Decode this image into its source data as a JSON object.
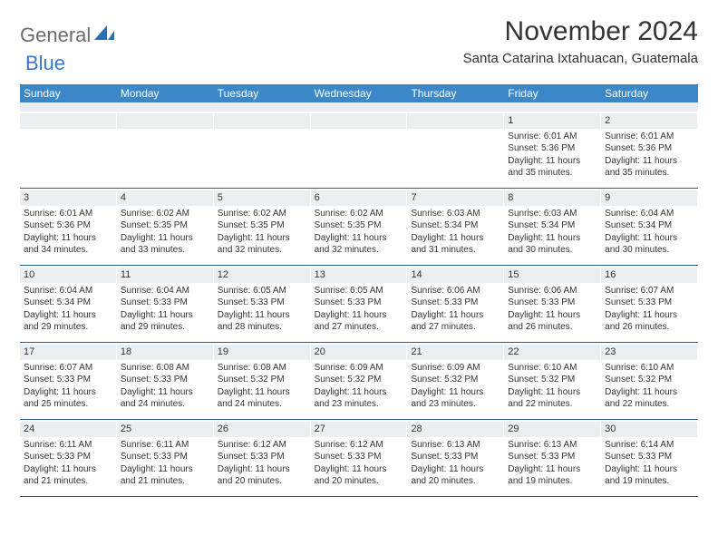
{
  "logo": {
    "gray": "General",
    "blue": "Blue"
  },
  "title": "November 2024",
  "location": "Santa Catarina Ixtahuacan, Guatemala",
  "colors": {
    "header_blue": "#3b87c8",
    "band_gray": "#eceff1",
    "rule_blue": "#2b5f8f",
    "logo_blue": "#3578c6",
    "text": "#333333",
    "bg": "#ffffff"
  },
  "dow": [
    "Sunday",
    "Monday",
    "Tuesday",
    "Wednesday",
    "Thursday",
    "Friday",
    "Saturday"
  ],
  "weeks": [
    [
      {
        "n": "",
        "sr": "",
        "ss": "",
        "dl": ""
      },
      {
        "n": "",
        "sr": "",
        "ss": "",
        "dl": ""
      },
      {
        "n": "",
        "sr": "",
        "ss": "",
        "dl": ""
      },
      {
        "n": "",
        "sr": "",
        "ss": "",
        "dl": ""
      },
      {
        "n": "",
        "sr": "",
        "ss": "",
        "dl": ""
      },
      {
        "n": "1",
        "sr": "Sunrise: 6:01 AM",
        "ss": "Sunset: 5:36 PM",
        "dl": "Daylight: 11 hours and 35 minutes."
      },
      {
        "n": "2",
        "sr": "Sunrise: 6:01 AM",
        "ss": "Sunset: 5:36 PM",
        "dl": "Daylight: 11 hours and 35 minutes."
      }
    ],
    [
      {
        "n": "3",
        "sr": "Sunrise: 6:01 AM",
        "ss": "Sunset: 5:36 PM",
        "dl": "Daylight: 11 hours and 34 minutes."
      },
      {
        "n": "4",
        "sr": "Sunrise: 6:02 AM",
        "ss": "Sunset: 5:35 PM",
        "dl": "Daylight: 11 hours and 33 minutes."
      },
      {
        "n": "5",
        "sr": "Sunrise: 6:02 AM",
        "ss": "Sunset: 5:35 PM",
        "dl": "Daylight: 11 hours and 32 minutes."
      },
      {
        "n": "6",
        "sr": "Sunrise: 6:02 AM",
        "ss": "Sunset: 5:35 PM",
        "dl": "Daylight: 11 hours and 32 minutes."
      },
      {
        "n": "7",
        "sr": "Sunrise: 6:03 AM",
        "ss": "Sunset: 5:34 PM",
        "dl": "Daylight: 11 hours and 31 minutes."
      },
      {
        "n": "8",
        "sr": "Sunrise: 6:03 AM",
        "ss": "Sunset: 5:34 PM",
        "dl": "Daylight: 11 hours and 30 minutes."
      },
      {
        "n": "9",
        "sr": "Sunrise: 6:04 AM",
        "ss": "Sunset: 5:34 PM",
        "dl": "Daylight: 11 hours and 30 minutes."
      }
    ],
    [
      {
        "n": "10",
        "sr": "Sunrise: 6:04 AM",
        "ss": "Sunset: 5:34 PM",
        "dl": "Daylight: 11 hours and 29 minutes."
      },
      {
        "n": "11",
        "sr": "Sunrise: 6:04 AM",
        "ss": "Sunset: 5:33 PM",
        "dl": "Daylight: 11 hours and 29 minutes."
      },
      {
        "n": "12",
        "sr": "Sunrise: 6:05 AM",
        "ss": "Sunset: 5:33 PM",
        "dl": "Daylight: 11 hours and 28 minutes."
      },
      {
        "n": "13",
        "sr": "Sunrise: 6:05 AM",
        "ss": "Sunset: 5:33 PM",
        "dl": "Daylight: 11 hours and 27 minutes."
      },
      {
        "n": "14",
        "sr": "Sunrise: 6:06 AM",
        "ss": "Sunset: 5:33 PM",
        "dl": "Daylight: 11 hours and 27 minutes."
      },
      {
        "n": "15",
        "sr": "Sunrise: 6:06 AM",
        "ss": "Sunset: 5:33 PM",
        "dl": "Daylight: 11 hours and 26 minutes."
      },
      {
        "n": "16",
        "sr": "Sunrise: 6:07 AM",
        "ss": "Sunset: 5:33 PM",
        "dl": "Daylight: 11 hours and 26 minutes."
      }
    ],
    [
      {
        "n": "17",
        "sr": "Sunrise: 6:07 AM",
        "ss": "Sunset: 5:33 PM",
        "dl": "Daylight: 11 hours and 25 minutes."
      },
      {
        "n": "18",
        "sr": "Sunrise: 6:08 AM",
        "ss": "Sunset: 5:33 PM",
        "dl": "Daylight: 11 hours and 24 minutes."
      },
      {
        "n": "19",
        "sr": "Sunrise: 6:08 AM",
        "ss": "Sunset: 5:32 PM",
        "dl": "Daylight: 11 hours and 24 minutes."
      },
      {
        "n": "20",
        "sr": "Sunrise: 6:09 AM",
        "ss": "Sunset: 5:32 PM",
        "dl": "Daylight: 11 hours and 23 minutes."
      },
      {
        "n": "21",
        "sr": "Sunrise: 6:09 AM",
        "ss": "Sunset: 5:32 PM",
        "dl": "Daylight: 11 hours and 23 minutes."
      },
      {
        "n": "22",
        "sr": "Sunrise: 6:10 AM",
        "ss": "Sunset: 5:32 PM",
        "dl": "Daylight: 11 hours and 22 minutes."
      },
      {
        "n": "23",
        "sr": "Sunrise: 6:10 AM",
        "ss": "Sunset: 5:32 PM",
        "dl": "Daylight: 11 hours and 22 minutes."
      }
    ],
    [
      {
        "n": "24",
        "sr": "Sunrise: 6:11 AM",
        "ss": "Sunset: 5:33 PM",
        "dl": "Daylight: 11 hours and 21 minutes."
      },
      {
        "n": "25",
        "sr": "Sunrise: 6:11 AM",
        "ss": "Sunset: 5:33 PM",
        "dl": "Daylight: 11 hours and 21 minutes."
      },
      {
        "n": "26",
        "sr": "Sunrise: 6:12 AM",
        "ss": "Sunset: 5:33 PM",
        "dl": "Daylight: 11 hours and 20 minutes."
      },
      {
        "n": "27",
        "sr": "Sunrise: 6:12 AM",
        "ss": "Sunset: 5:33 PM",
        "dl": "Daylight: 11 hours and 20 minutes."
      },
      {
        "n": "28",
        "sr": "Sunrise: 6:13 AM",
        "ss": "Sunset: 5:33 PM",
        "dl": "Daylight: 11 hours and 20 minutes."
      },
      {
        "n": "29",
        "sr": "Sunrise: 6:13 AM",
        "ss": "Sunset: 5:33 PM",
        "dl": "Daylight: 11 hours and 19 minutes."
      },
      {
        "n": "30",
        "sr": "Sunrise: 6:14 AM",
        "ss": "Sunset: 5:33 PM",
        "dl": "Daylight: 11 hours and 19 minutes."
      }
    ]
  ]
}
